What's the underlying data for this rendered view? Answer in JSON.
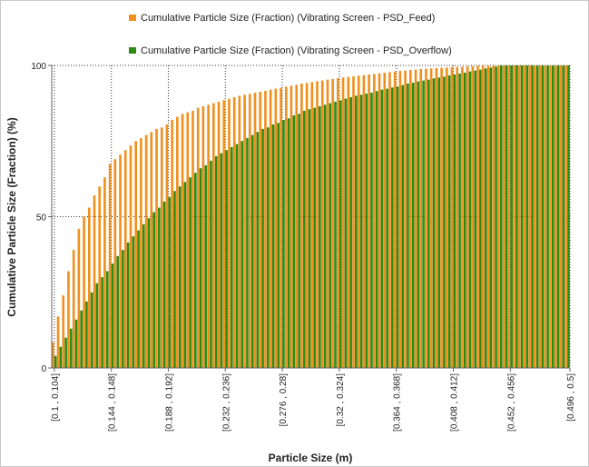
{
  "chart_data": {
    "type": "bar",
    "title": "",
    "xlabel": "Particle Size (m)",
    "ylabel": "Cumulative Particle Size (Fraction) (%)",
    "ylim": [
      0,
      100
    ],
    "yticks": [
      "0",
      "50",
      "100"
    ],
    "grid": true,
    "legend_position": "top-center",
    "x_tick_labels": [
      "[0.1 , 0.104]",
      "[0.144 , 0.148]",
      "[0.188 , 0.192]",
      "[0.232 , 0.236]",
      "[0.276 , 0.28]",
      "[0.32 , 0.324]",
      "[0.364 , 0.368]",
      "[0.408 , 0.412]",
      "[0.452 , 0.456]",
      "[0.496 , 0.5]"
    ],
    "bin_start": 0.1,
    "bin_width": 0.004,
    "bin_count": 100,
    "series": [
      {
        "name": "Cumulative Particle Size (Fraction) (Vibrating Screen - PSD_Feed)",
        "color": "#f0901e",
        "values": [
          8.5,
          17,
          24,
          32,
          39,
          46,
          50,
          53,
          57,
          60,
          63,
          67.5,
          69,
          70.5,
          72,
          73.5,
          75,
          76,
          77,
          78,
          79,
          79.5,
          80.5,
          82,
          83,
          84,
          84.5,
          85,
          86,
          86.5,
          87,
          87.5,
          88,
          88.5,
          89,
          89.5,
          90,
          90.3,
          90.6,
          91,
          91.3,
          91.6,
          92,
          92.3,
          92.6,
          93,
          93.3,
          93.6,
          94,
          94.2,
          94.5,
          94.8,
          95,
          95.3,
          95.5,
          95.8,
          96,
          96.2,
          96.4,
          96.6,
          96.8,
          97,
          97.2,
          97.4,
          97.6,
          97.8,
          98,
          98.2,
          98.3,
          98.5,
          98.6,
          98.8,
          98.9,
          99,
          99.1,
          99.2,
          99.3,
          99.4,
          99.5,
          99.6,
          99.7,
          99.8,
          99.85,
          99.9,
          99.95,
          100,
          100,
          100,
          100,
          100,
          100,
          100,
          100,
          100,
          100,
          100,
          100,
          100,
          100,
          100
        ]
      },
      {
        "name": "Cumulative Particle Size (Fraction) (Vibrating Screen - PSD_Overflow)",
        "color": "#2e8b14",
        "values": [
          4,
          7,
          10,
          13,
          16,
          19,
          22,
          25,
          28,
          30,
          32,
          34.5,
          37,
          39,
          41.5,
          43.5,
          45.5,
          47.5,
          49.5,
          51.5,
          53,
          55,
          56.5,
          58.5,
          60,
          61.5,
          63,
          64.5,
          66,
          67,
          68.5,
          70,
          71,
          72,
          73,
          74,
          75,
          76,
          77,
          78,
          79,
          79.5,
          80.5,
          81,
          82,
          82.5,
          83.5,
          84,
          85,
          85.5,
          86,
          86.5,
          87,
          87.5,
          88,
          88.5,
          89,
          89.5,
          90,
          90.3,
          90.7,
          91,
          91.5,
          92,
          92.3,
          92.7,
          93,
          93.5,
          94,
          94.3,
          94.7,
          95,
          95.3,
          95.7,
          96,
          96.3,
          96.7,
          97,
          97.3,
          97.6,
          98,
          98.3,
          98.6,
          99,
          99.3,
          99.6,
          100,
          100,
          100,
          100,
          100,
          100,
          100,
          100,
          100,
          100,
          100,
          100,
          100,
          100
        ]
      }
    ]
  }
}
